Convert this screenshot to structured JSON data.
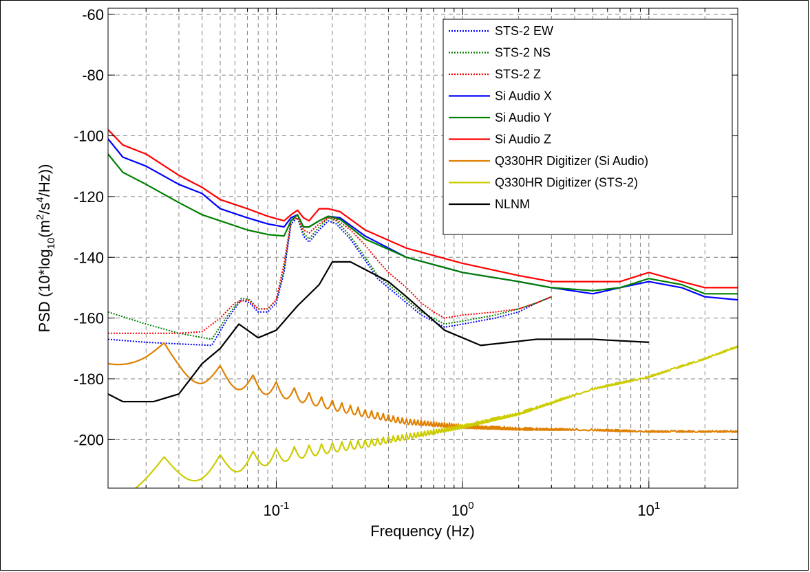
{
  "chart_data": {
    "type": "line",
    "xlabel": "Frequency (Hz)",
    "ylabel_main": "PSD (10*log",
    "ylabel_sub": "10",
    "ylabel_mid": "(m",
    "ylabel_sup1": "2",
    "ylabel_mid2": "/s",
    "ylabel_sup2": "4",
    "ylabel_end": "/Hz))",
    "xscale": "log",
    "xlim": [
      0.0125,
      30
    ],
    "ylim": [
      -216,
      -58
    ],
    "grid": true,
    "legend_position": "top-right",
    "x_ticks": [
      {
        "value": 0.1,
        "base": "10",
        "exp": "-1"
      },
      {
        "value": 1,
        "base": "10",
        "exp": "0"
      },
      {
        "value": 10,
        "base": "10",
        "exp": "1"
      }
    ],
    "y_ticks": [
      -60,
      -80,
      -100,
      -120,
      -140,
      -160,
      -180,
      -200
    ],
    "series": [
      {
        "name": "STS-2 EW",
        "color": "#0000ff",
        "style": "dotted",
        "points": [
          [
            0.0125,
            -167
          ],
          [
            0.02,
            -168
          ],
          [
            0.03,
            -168.5
          ],
          [
            0.045,
            -169
          ],
          [
            0.055,
            -160
          ],
          [
            0.065,
            -154
          ],
          [
            0.072,
            -155
          ],
          [
            0.08,
            -158
          ],
          [
            0.09,
            -158
          ],
          [
            0.1,
            -155
          ],
          [
            0.11,
            -145
          ],
          [
            0.12,
            -129
          ],
          [
            0.13,
            -127
          ],
          [
            0.14,
            -133
          ],
          [
            0.15,
            -135
          ],
          [
            0.17,
            -131
          ],
          [
            0.19,
            -128
          ],
          [
            0.21,
            -129
          ],
          [
            0.25,
            -134
          ],
          [
            0.3,
            -141
          ],
          [
            0.35,
            -147
          ],
          [
            0.4,
            -150
          ],
          [
            0.5,
            -155
          ],
          [
            0.6,
            -159
          ],
          [
            0.8,
            -163
          ],
          [
            1.0,
            -162
          ],
          [
            1.5,
            -160
          ],
          [
            2.0,
            -158
          ],
          [
            2.5,
            -155
          ],
          [
            3,
            -153
          ]
        ]
      },
      {
        "name": "STS-2 NS",
        "color": "#008000",
        "style": "dotted",
        "points": [
          [
            0.0125,
            -158
          ],
          [
            0.02,
            -162
          ],
          [
            0.03,
            -165
          ],
          [
            0.045,
            -167
          ],
          [
            0.055,
            -159
          ],
          [
            0.065,
            -153.5
          ],
          [
            0.072,
            -154
          ],
          [
            0.08,
            -157
          ],
          [
            0.09,
            -157
          ],
          [
            0.1,
            -154
          ],
          [
            0.11,
            -144
          ],
          [
            0.12,
            -128
          ],
          [
            0.13,
            -127
          ],
          [
            0.14,
            -132
          ],
          [
            0.15,
            -134
          ],
          [
            0.17,
            -130
          ],
          [
            0.19,
            -127
          ],
          [
            0.21,
            -128
          ],
          [
            0.25,
            -133
          ],
          [
            0.3,
            -140
          ],
          [
            0.35,
            -146
          ],
          [
            0.4,
            -149
          ],
          [
            0.5,
            -154
          ],
          [
            0.6,
            -158
          ],
          [
            0.8,
            -162
          ],
          [
            1.0,
            -161
          ],
          [
            1.5,
            -159
          ],
          [
            2.0,
            -157
          ],
          [
            2.5,
            -155
          ],
          [
            3,
            -153
          ]
        ]
      },
      {
        "name": "STS-2 Z",
        "color": "#ff0000",
        "style": "dotted",
        "points": [
          [
            0.0125,
            -165
          ],
          [
            0.02,
            -165
          ],
          [
            0.03,
            -165
          ],
          [
            0.04,
            -164.5
          ],
          [
            0.05,
            -160
          ],
          [
            0.06,
            -155
          ],
          [
            0.07,
            -154
          ],
          [
            0.08,
            -157
          ],
          [
            0.09,
            -157
          ],
          [
            0.1,
            -154
          ],
          [
            0.11,
            -142
          ],
          [
            0.12,
            -128
          ],
          [
            0.13,
            -127
          ],
          [
            0.14,
            -131
          ],
          [
            0.15,
            -132
          ],
          [
            0.17,
            -129
          ],
          [
            0.19,
            -127
          ],
          [
            0.21,
            -127.5
          ],
          [
            0.25,
            -131
          ],
          [
            0.3,
            -136
          ],
          [
            0.35,
            -141
          ],
          [
            0.4,
            -145
          ],
          [
            0.5,
            -150
          ],
          [
            0.6,
            -155
          ],
          [
            0.7,
            -158
          ],
          [
            0.8,
            -160
          ],
          [
            1.0,
            -159
          ],
          [
            1.5,
            -158
          ],
          [
            2.0,
            -157
          ],
          [
            2.5,
            -155
          ],
          [
            3,
            -153
          ]
        ]
      },
      {
        "name": "Si Audio X",
        "color": "#0000ff",
        "style": "solid",
        "points": [
          [
            0.0125,
            -101
          ],
          [
            0.015,
            -107
          ],
          [
            0.02,
            -110
          ],
          [
            0.03,
            -116
          ],
          [
            0.04,
            -119
          ],
          [
            0.05,
            -124
          ],
          [
            0.07,
            -127
          ],
          [
            0.09,
            -129
          ],
          [
            0.11,
            -130
          ],
          [
            0.12,
            -127
          ],
          [
            0.13,
            -126
          ],
          [
            0.14,
            -130
          ],
          [
            0.15,
            -130
          ],
          [
            0.17,
            -128
          ],
          [
            0.19,
            -126.5
          ],
          [
            0.22,
            -127
          ],
          [
            0.3,
            -133
          ],
          [
            0.5,
            -140
          ],
          [
            1,
            -145
          ],
          [
            2,
            -148
          ],
          [
            3,
            -150
          ],
          [
            5,
            -152
          ],
          [
            7,
            -150
          ],
          [
            10,
            -148
          ],
          [
            15,
            -150
          ],
          [
            20,
            -153
          ],
          [
            30,
            -154
          ]
        ]
      },
      {
        "name": "Si Audio Y",
        "color": "#008000",
        "style": "solid",
        "points": [
          [
            0.0125,
            -106
          ],
          [
            0.015,
            -112
          ],
          [
            0.02,
            -116
          ],
          [
            0.03,
            -122
          ],
          [
            0.04,
            -126
          ],
          [
            0.05,
            -128
          ],
          [
            0.07,
            -131
          ],
          [
            0.09,
            -132.5
          ],
          [
            0.11,
            -133
          ],
          [
            0.12,
            -128
          ],
          [
            0.13,
            -126
          ],
          [
            0.14,
            -130
          ],
          [
            0.15,
            -130
          ],
          [
            0.17,
            -128
          ],
          [
            0.19,
            -126.5
          ],
          [
            0.22,
            -127.5
          ],
          [
            0.3,
            -134
          ],
          [
            0.5,
            -140
          ],
          [
            1,
            -145
          ],
          [
            2,
            -148
          ],
          [
            3,
            -150
          ],
          [
            5,
            -151
          ],
          [
            7,
            -150
          ],
          [
            10,
            -147
          ],
          [
            15,
            -149
          ],
          [
            20,
            -152
          ],
          [
            30,
            -152
          ]
        ]
      },
      {
        "name": "Si Audio Z",
        "color": "#ff0000",
        "style": "solid",
        "points": [
          [
            0.0125,
            -98
          ],
          [
            0.015,
            -103
          ],
          [
            0.02,
            -106
          ],
          [
            0.03,
            -113
          ],
          [
            0.04,
            -117
          ],
          [
            0.05,
            -121
          ],
          [
            0.07,
            -124
          ],
          [
            0.09,
            -126.5
          ],
          [
            0.11,
            -128
          ],
          [
            0.12,
            -126
          ],
          [
            0.13,
            -124.5
          ],
          [
            0.14,
            -127
          ],
          [
            0.15,
            -128
          ],
          [
            0.17,
            -124
          ],
          [
            0.19,
            -124
          ],
          [
            0.22,
            -125
          ],
          [
            0.3,
            -131
          ],
          [
            0.5,
            -137
          ],
          [
            1,
            -142
          ],
          [
            2,
            -146
          ],
          [
            3,
            -148
          ],
          [
            5,
            -148
          ],
          [
            7,
            -148
          ],
          [
            10,
            -145
          ],
          [
            15,
            -148
          ],
          [
            20,
            -150
          ],
          [
            30,
            -150
          ]
        ]
      },
      {
        "name": "Q330HR Digitizer (Si Audio)",
        "color": "#e08000",
        "style": "solid",
        "oscillating": true,
        "points": [
          [
            0.0125,
            -160
          ],
          [
            0.02,
            -166
          ],
          [
            0.03,
            -170
          ],
          [
            0.04,
            -174
          ],
          [
            0.06,
            -177
          ],
          [
            0.1,
            -181
          ],
          [
            0.2,
            -187
          ],
          [
            0.3,
            -190
          ],
          [
            0.5,
            -193
          ],
          [
            0.7,
            -194
          ],
          [
            1,
            -195
          ],
          [
            2,
            -196
          ],
          [
            5,
            -196.5
          ],
          [
            10,
            -197
          ],
          [
            30,
            -197
          ]
        ]
      },
      {
        "name": "Q330HR Digitizer (STS-2)",
        "color": "#cccc00",
        "style": "solid",
        "oscillating": true,
        "points": [
          [
            0.0125,
            -206
          ],
          [
            0.02,
            -206
          ],
          [
            0.03,
            -205.5
          ],
          [
            0.05,
            -205
          ],
          [
            0.1,
            -203
          ],
          [
            0.2,
            -201
          ],
          [
            0.3,
            -200
          ],
          [
            0.5,
            -198
          ],
          [
            1,
            -195
          ],
          [
            2,
            -191
          ],
          [
            5,
            -183
          ],
          [
            10,
            -179
          ],
          [
            20,
            -173
          ],
          [
            30,
            -169
          ]
        ]
      },
      {
        "name": "NLNM",
        "color": "#000000",
        "style": "solid",
        "points": [
          [
            0.0125,
            -185
          ],
          [
            0.015,
            -187.5
          ],
          [
            0.022,
            -187.5
          ],
          [
            0.03,
            -185
          ],
          [
            0.04,
            -175
          ],
          [
            0.05,
            -170
          ],
          [
            0.063,
            -162
          ],
          [
            0.08,
            -166.5
          ],
          [
            0.1,
            -164
          ],
          [
            0.13,
            -156
          ],
          [
            0.17,
            -149
          ],
          [
            0.2,
            -141.5
          ],
          [
            0.25,
            -141.5
          ],
          [
            0.4,
            -148
          ],
          [
            0.5,
            -153
          ],
          [
            0.8,
            -164
          ],
          [
            1.25,
            -169
          ],
          [
            2.5,
            -167
          ],
          [
            5,
            -167
          ],
          [
            10,
            -168
          ]
        ]
      }
    ]
  }
}
